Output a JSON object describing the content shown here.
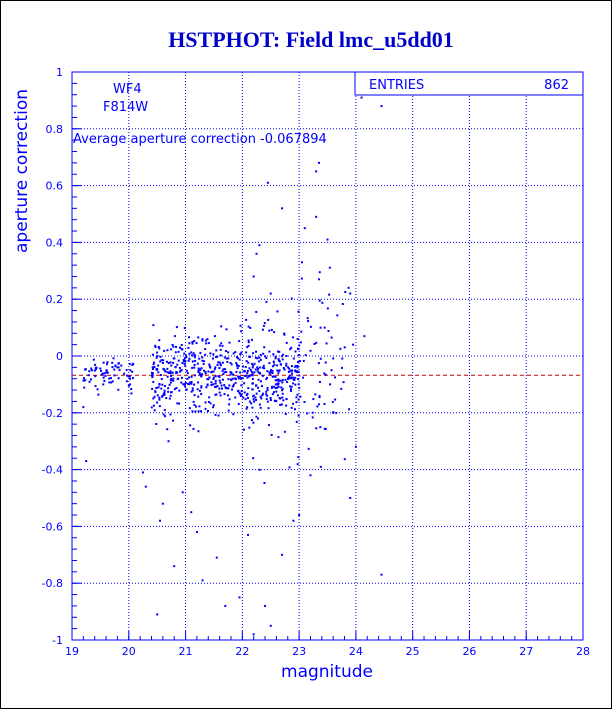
{
  "chart_data": {
    "type": "scatter",
    "title": "HSTPHOT: Field lmc_u5dd01",
    "xlabel": "magnitude",
    "ylabel": "aperture correction",
    "xlim": [
      19,
      28
    ],
    "ylim": [
      -1,
      1
    ],
    "x_ticks": [
      "19",
      "20",
      "21",
      "22",
      "23",
      "24",
      "25",
      "26",
      "27",
      "28"
    ],
    "y_ticks": [
      "-1",
      "-0.8",
      "-0.6",
      "-0.4",
      "-0.2",
      "0",
      "0.2",
      "0.4",
      "0.6",
      "0.8",
      "1"
    ],
    "grid": true,
    "annotations": {
      "camera": "WF4",
      "filter": "F814W",
      "average_text": "Average aperture correction -0.067894"
    },
    "stats_box": {
      "label": "ENTRIES",
      "value": "862"
    },
    "average_line": -0.068,
    "colors": {
      "frame": "#0000ff",
      "points": "#0000ff",
      "title": "#0000cc",
      "average_line": "#cc0000",
      "text": "#0000ff"
    },
    "points": [
      [
        24.1,
        0.91
      ],
      [
        24.45,
        0.88
      ],
      [
        23.35,
        0.68
      ],
      [
        23.3,
        0.65
      ],
      [
        22.45,
        0.61
      ],
      [
        22.7,
        0.52
      ],
      [
        23.3,
        0.49
      ],
      [
        23.1,
        0.45
      ],
      [
        22.3,
        0.39
      ],
      [
        23.5,
        0.41
      ],
      [
        22.25,
        0.36
      ],
      [
        23.05,
        0.33
      ],
      [
        22.2,
        0.28
      ],
      [
        23.35,
        0.27
      ],
      [
        23.9,
        0.22
      ],
      [
        22.5,
        0.22
      ],
      [
        23.45,
        0.1
      ],
      [
        24.15,
        0.07
      ],
      [
        23.95,
        0.04
      ],
      [
        19.8,
        -0.04
      ],
      [
        19.35,
        -0.05
      ],
      [
        19.55,
        -0.1
      ],
      [
        19.2,
        -0.18
      ],
      [
        19.25,
        -0.37
      ],
      [
        20.25,
        -0.41
      ],
      [
        20.3,
        -0.46
      ],
      [
        20.7,
        -0.3
      ],
      [
        20.6,
        -0.52
      ],
      [
        20.55,
        -0.58
      ],
      [
        21.1,
        -0.55
      ],
      [
        21.2,
        -0.62
      ],
      [
        20.8,
        -0.74
      ],
      [
        21.3,
        -0.79
      ],
      [
        21.7,
        -0.88
      ],
      [
        21.95,
        -0.85
      ],
      [
        22.4,
        -0.88
      ],
      [
        22.2,
        -0.98
      ],
      [
        22.5,
        -0.95
      ],
      [
        23.0,
        -0.56
      ],
      [
        23.2,
        -0.42
      ],
      [
        23.6,
        -0.2
      ],
      [
        23.9,
        -0.5
      ],
      [
        24.45,
        -0.77
      ],
      [
        24.0,
        -0.32
      ],
      [
        20.5,
        -0.91
      ],
      [
        22.9,
        -0.58
      ],
      [
        22.1,
        -0.63
      ],
      [
        22.7,
        -0.7
      ],
      [
        21.55,
        -0.71
      ],
      [
        20.95,
        -0.48
      ]
    ]
  }
}
